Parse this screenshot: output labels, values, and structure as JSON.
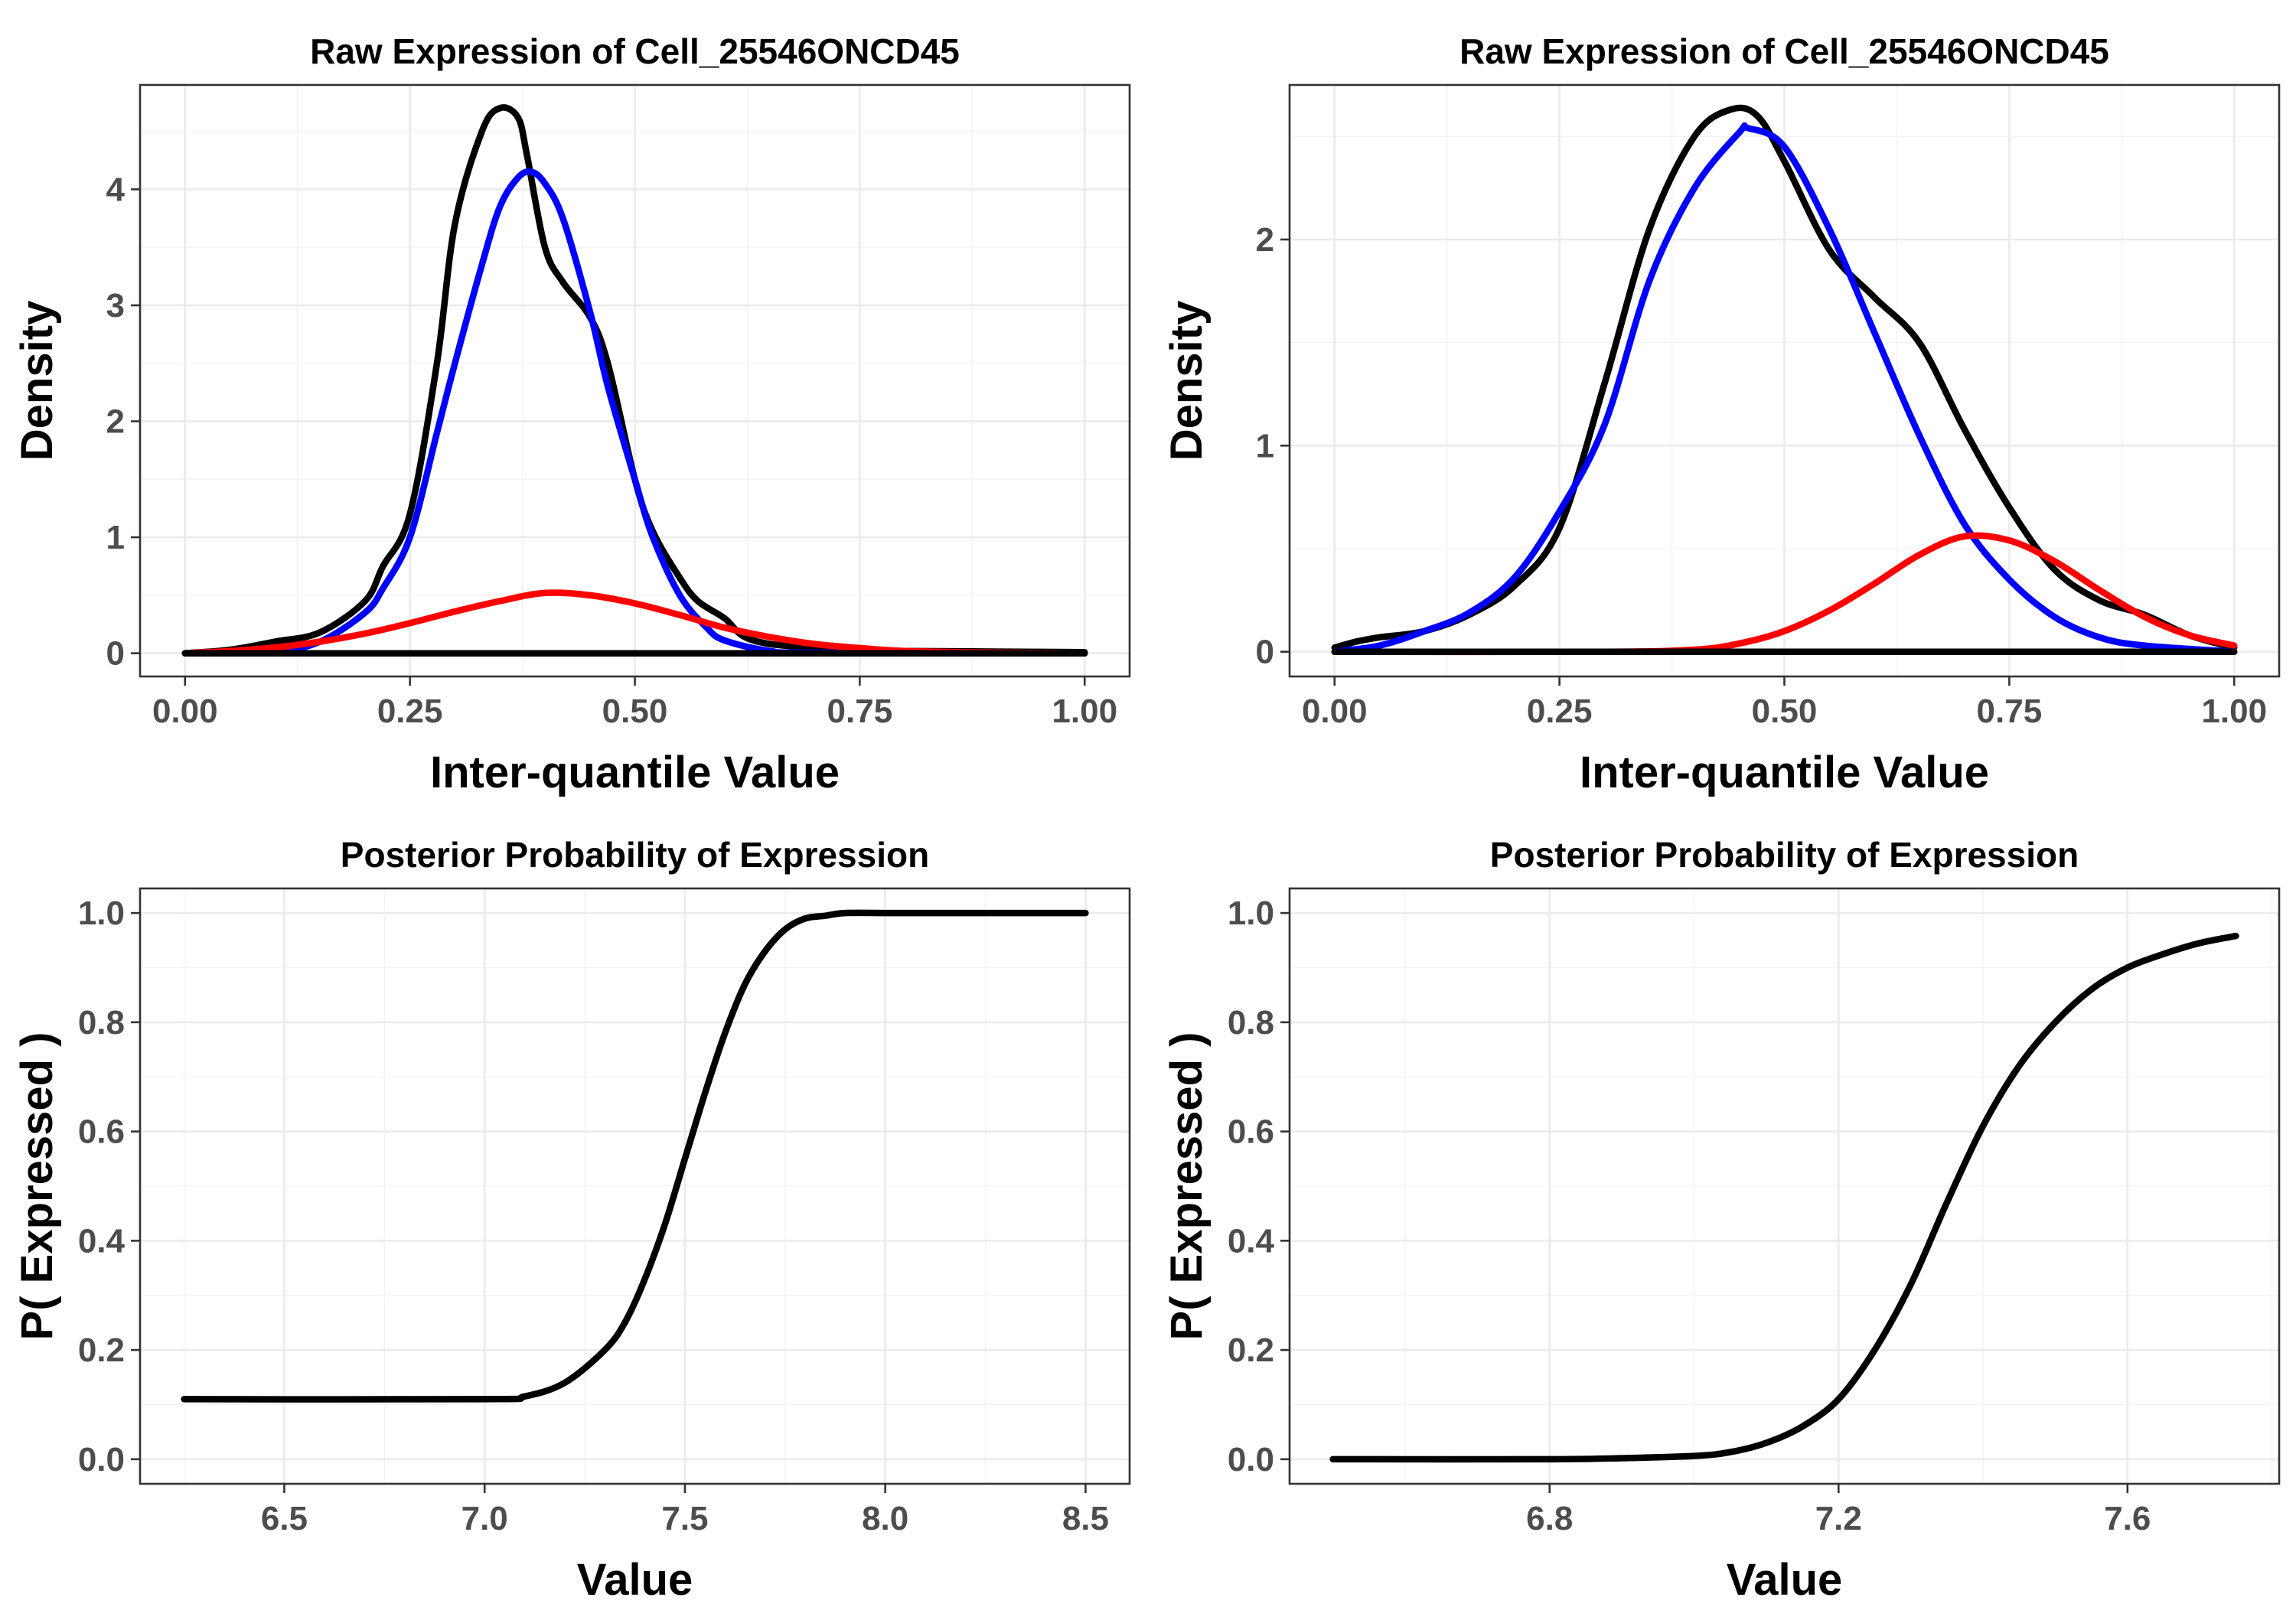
{
  "chart_data": [
    {
      "type": "line",
      "title": "Raw Expression of Cell_25546ONCD45",
      "xlabel": "Inter-quantile Value",
      "ylabel": "Density",
      "xlim": [
        -0.05,
        1.05
      ],
      "ylim": [
        -0.2,
        4.9
      ],
      "x_ticks": [
        0,
        0.25,
        0.5,
        0.75,
        1.0
      ],
      "x_tick_labels": [
        "0.00",
        "0.25",
        "0.50",
        "0.75",
        "1.00"
      ],
      "y_ticks": [
        0,
        1,
        2,
        3,
        4
      ],
      "y_tick_labels": [
        "0",
        "1",
        "2",
        "3",
        "4"
      ],
      "grid": true,
      "series": [
        {
          "color": "#000000",
          "x": [
            0,
            0.05,
            0.1,
            0.15,
            0.2,
            0.22,
            0.25,
            0.28,
            0.3,
            0.33,
            0.35,
            0.37,
            0.38,
            0.4,
            0.42,
            0.45,
            0.47,
            0.5,
            0.52,
            0.55,
            0.57,
            0.6,
            0.62,
            0.65,
            0.7,
            0.75,
            0.8,
            1.0
          ],
          "y": [
            0,
            0.03,
            0.1,
            0.18,
            0.45,
            0.75,
            1.2,
            2.5,
            3.7,
            4.5,
            4.7,
            4.62,
            4.3,
            3.5,
            3.2,
            2.9,
            2.5,
            1.5,
            1.05,
            0.65,
            0.45,
            0.3,
            0.15,
            0.08,
            0.05,
            0.03,
            0.02,
            0.01
          ]
        },
        {
          "color": "#0000ff",
          "x": [
            0,
            0.1,
            0.15,
            0.2,
            0.22,
            0.25,
            0.28,
            0.3,
            0.33,
            0.35,
            0.37,
            0.385,
            0.4,
            0.42,
            0.45,
            0.47,
            0.5,
            0.52,
            0.55,
            0.58,
            0.6,
            0.65,
            0.7,
            1.0
          ],
          "y": [
            0,
            0.02,
            0.1,
            0.35,
            0.56,
            1.0,
            1.9,
            2.5,
            3.35,
            3.85,
            4.1,
            4.15,
            4.05,
            3.75,
            2.95,
            2.3,
            1.5,
            1.0,
            0.5,
            0.22,
            0.11,
            0.02,
            0.005,
            0
          ]
        },
        {
          "color": "#ff0000",
          "x": [
            0,
            0.05,
            0.1,
            0.15,
            0.2,
            0.25,
            0.3,
            0.35,
            0.4,
            0.45,
            0.5,
            0.55,
            0.6,
            0.65,
            0.7,
            0.75,
            0.8,
            0.9,
            1.0
          ],
          "y": [
            0,
            0.02,
            0.05,
            0.1,
            0.17,
            0.26,
            0.36,
            0.45,
            0.52,
            0.5,
            0.43,
            0.33,
            0.22,
            0.14,
            0.08,
            0.045,
            0.02,
            0.005,
            0
          ]
        },
        {
          "color": "#000000",
          "x": [
            0,
            1.0
          ],
          "y": [
            0,
            0
          ]
        }
      ]
    },
    {
      "type": "line",
      "title": "Raw Expression of Cell_25546ONCD45",
      "xlabel": "Inter-quantile Value",
      "ylabel": "Density",
      "xlim": [
        -0.05,
        1.05
      ],
      "ylim": [
        -0.12,
        2.75
      ],
      "x_ticks": [
        0,
        0.25,
        0.5,
        0.75,
        1.0
      ],
      "x_tick_labels": [
        "0.00",
        "0.25",
        "0.50",
        "0.75",
        "1.00"
      ],
      "y_ticks": [
        0,
        1,
        2
      ],
      "y_tick_labels": [
        "0",
        "1",
        "2"
      ],
      "grid": true,
      "series": [
        {
          "color": "#000000",
          "x": [
            0,
            0.025,
            0.05,
            0.1,
            0.15,
            0.2,
            0.25,
            0.3,
            0.35,
            0.4,
            0.44,
            0.47,
            0.5,
            0.55,
            0.6,
            0.65,
            0.7,
            0.75,
            0.8,
            0.85,
            0.9,
            0.95,
            1.0
          ],
          "y": [
            0.02,
            0.05,
            0.07,
            0.1,
            0.18,
            0.32,
            0.6,
            1.3,
            2.05,
            2.5,
            2.63,
            2.6,
            2.38,
            1.95,
            1.72,
            1.5,
            1.08,
            0.7,
            0.4,
            0.25,
            0.18,
            0.08,
            0.02
          ]
        },
        {
          "color": "#0000ff",
          "x": [
            0,
            0.05,
            0.1,
            0.15,
            0.2,
            0.25,
            0.3,
            0.35,
            0.4,
            0.45,
            0.46,
            0.5,
            0.55,
            0.6,
            0.65,
            0.7,
            0.75,
            0.8,
            0.85,
            0.9,
            1.0
          ],
          "y": [
            0,
            0.03,
            0.1,
            0.19,
            0.36,
            0.68,
            1.1,
            1.8,
            2.25,
            2.52,
            2.54,
            2.45,
            2.05,
            1.55,
            1.05,
            0.62,
            0.35,
            0.17,
            0.07,
            0.03,
            0
          ]
        },
        {
          "color": "#ff0000",
          "x": [
            0,
            0.3,
            0.4,
            0.45,
            0.5,
            0.55,
            0.6,
            0.65,
            0.7,
            0.75,
            0.8,
            0.85,
            0.9,
            0.95,
            1.0
          ],
          "y": [
            0,
            0,
            0.01,
            0.04,
            0.1,
            0.2,
            0.33,
            0.47,
            0.56,
            0.54,
            0.44,
            0.3,
            0.17,
            0.08,
            0.03
          ]
        },
        {
          "color": "#000000",
          "x": [
            0,
            1.0
          ],
          "y": [
            0,
            0
          ]
        }
      ]
    },
    {
      "type": "line",
      "title": "Posterior Probability of Expression",
      "xlabel": "Value",
      "ylabel": "P( Expressed )",
      "xlim": [
        6.14,
        8.61
      ],
      "ylim": [
        -0.045,
        1.045
      ],
      "x_ticks": [
        6.5,
        7.0,
        7.5,
        8.0,
        8.5
      ],
      "x_tick_labels": [
        "6.5",
        "7.0",
        "7.5",
        "8.0",
        "8.5"
      ],
      "y_ticks": [
        0,
        0.2,
        0.4,
        0.6,
        0.8,
        1.0
      ],
      "y_tick_labels": [
        "0.0",
        "0.2",
        "0.4",
        "0.6",
        "0.8",
        "1.0"
      ],
      "grid": true,
      "series": [
        {
          "color": "#000000",
          "x": [
            6.25,
            7.0,
            7.1,
            7.2,
            7.3,
            7.35,
            7.4,
            7.45,
            7.5,
            7.55,
            7.6,
            7.65,
            7.7,
            7.75,
            7.8,
            7.85,
            7.9,
            8.0,
            8.1,
            8.5
          ],
          "y": [
            0.11,
            0.11,
            0.115,
            0.14,
            0.2,
            0.25,
            0.33,
            0.43,
            0.55,
            0.67,
            0.78,
            0.87,
            0.93,
            0.97,
            0.99,
            0.995,
            1.0,
            1.0,
            1.0,
            1.0
          ]
        }
      ]
    },
    {
      "type": "line",
      "title": "Posterior Probability of Expression",
      "xlabel": "Value",
      "ylabel": "P( Expressed )",
      "xlim": [
        6.44,
        7.81
      ],
      "ylim": [
        -0.045,
        1.045
      ],
      "x_ticks": [
        6.8,
        7.2,
        7.6
      ],
      "x_tick_labels": [
        "6.8",
        "7.2",
        "7.6"
      ],
      "y_ticks": [
        0,
        0.2,
        0.4,
        0.6,
        0.8,
        1.0
      ],
      "y_tick_labels": [
        "0.0",
        "0.2",
        "0.4",
        "0.6",
        "0.8",
        "1.0"
      ],
      "grid": true,
      "series": [
        {
          "color": "#000000",
          "x": [
            6.5,
            6.8,
            6.9,
            7.0,
            7.05,
            7.1,
            7.15,
            7.2,
            7.25,
            7.3,
            7.35,
            7.4,
            7.45,
            7.5,
            7.55,
            7.6,
            7.65,
            7.7,
            7.75
          ],
          "y": [
            0,
            0,
            0.002,
            0.006,
            0.013,
            0.03,
            0.06,
            0.11,
            0.2,
            0.32,
            0.47,
            0.61,
            0.72,
            0.8,
            0.86,
            0.9,
            0.925,
            0.945,
            0.958
          ]
        }
      ]
    }
  ]
}
